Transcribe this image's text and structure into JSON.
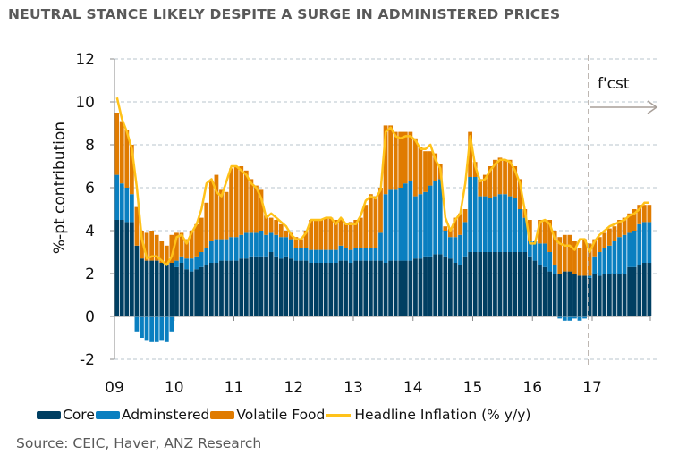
{
  "title": "NEUTRAL STANCE LIKELY DESPITE A SURGE IN ADMINISTERED PRICES",
  "source": "Source: CEIC, Haver, ANZ Research",
  "chart_data": {
    "type": "bar",
    "stacked": true,
    "ylabel": "%-pt contribution",
    "ylim": [
      -2,
      12
    ],
    "yticks": [
      "-2",
      "0",
      "2",
      "4",
      "6",
      "8",
      "10",
      "12"
    ],
    "xticks": [
      "09",
      "10",
      "11",
      "12",
      "13",
      "14",
      "15",
      "16",
      "17"
    ],
    "grid": "horizontal dashed",
    "forecast_label": "f'cst",
    "forecast_start": "17",
    "legend_position": "bottom",
    "colors": {
      "core": "#003f62",
      "administered": "#0a7fc0",
      "food": "#e07b00",
      "headline": "#ffc21a"
    },
    "period": "monthly, Jan 2009 - Dec 2017",
    "series": [
      {
        "name": "Core",
        "values": [
          4.5,
          4.5,
          4.4,
          4.4,
          3.3,
          2.7,
          2.6,
          2.6,
          2.6,
          2.5,
          2.4,
          2.5,
          2.3,
          2.5,
          2.2,
          2.1,
          2.2,
          2.3,
          2.4,
          2.5,
          2.5,
          2.6,
          2.6,
          2.6,
          2.6,
          2.7,
          2.7,
          2.8,
          2.8,
          2.8,
          2.8,
          3.0,
          2.8,
          2.7,
          2.8,
          2.7,
          2.6,
          2.6,
          2.6,
          2.5,
          2.5,
          2.5,
          2.5,
          2.5,
          2.5,
          2.6,
          2.6,
          2.5,
          2.6,
          2.6,
          2.6,
          2.6,
          2.6,
          2.6,
          2.5,
          2.6,
          2.6,
          2.6,
          2.6,
          2.6,
          2.7,
          2.7,
          2.8,
          2.8,
          2.9,
          2.9,
          2.8,
          2.7,
          2.5,
          2.4,
          2.8,
          3.0,
          3.0,
          3.0,
          3.0,
          3.0,
          3.0,
          3.0,
          3.0,
          3.0,
          3.0,
          3.0,
          3.0,
          2.8,
          2.6,
          2.4,
          2.3,
          2.1,
          2.0,
          2.0,
          2.1,
          2.1,
          2.0,
          1.9,
          1.9,
          1.8,
          2.0,
          1.9,
          2.0,
          2.0,
          2.0,
          2.0,
          2.0,
          2.3,
          2.3,
          2.4,
          2.5,
          2.5
        ]
      },
      {
        "name": "Adminstered",
        "values": [
          2.1,
          1.7,
          1.6,
          1.3,
          -0.7,
          -1.0,
          -1.1,
          -1.2,
          -1.2,
          -1.1,
          -1.2,
          -0.7,
          0.3,
          0.3,
          0.5,
          0.6,
          0.6,
          0.7,
          0.8,
          1.0,
          1.1,
          1.0,
          1.0,
          1.1,
          1.1,
          1.1,
          1.2,
          1.1,
          1.1,
          1.2,
          1.0,
          0.9,
          1.0,
          1.0,
          0.9,
          0.9,
          0.6,
          0.6,
          0.6,
          0.6,
          0.6,
          0.6,
          0.6,
          0.6,
          0.6,
          0.7,
          0.6,
          0.6,
          0.6,
          0.6,
          0.6,
          0.6,
          0.6,
          1.3,
          3.2,
          3.3,
          3.3,
          3.4,
          3.6,
          3.7,
          2.9,
          3.0,
          3.0,
          3.3,
          3.4,
          3.5,
          1.2,
          1.0,
          1.2,
          1.4,
          1.6,
          3.5,
          3.5,
          2.6,
          2.6,
          2.5,
          2.6,
          2.7,
          2.7,
          2.6,
          2.5,
          2.0,
          1.6,
          0.7,
          0.9,
          1.0,
          1.1,
          0.9,
          0.4,
          -0.1,
          -0.2,
          -0.2,
          -0.1,
          -0.2,
          -0.1,
          0.1,
          0.8,
          1.1,
          1.2,
          1.3,
          1.5,
          1.7,
          1.8,
          1.6,
          1.7,
          1.9,
          1.9,
          1.9
        ]
      },
      {
        "name": "Volatile Food",
        "values": [
          2.9,
          2.9,
          2.7,
          2.3,
          1.8,
          1.3,
          1.3,
          1.4,
          1.2,
          1.0,
          0.9,
          1.3,
          1.3,
          1.1,
          0.9,
          1.3,
          1.5,
          1.6,
          2.1,
          2.8,
          3.0,
          2.3,
          2.2,
          3.2,
          3.3,
          3.2,
          2.9,
          2.5,
          2.2,
          1.9,
          0.9,
          0.7,
          0.7,
          0.6,
          0.3,
          0.3,
          0.5,
          0.4,
          0.8,
          1.4,
          1.4,
          1.4,
          1.5,
          1.5,
          1.4,
          1.2,
          1.1,
          1.3,
          1.3,
          1.4,
          2.0,
          2.5,
          2.4,
          2.1,
          3.2,
          3.0,
          2.7,
          2.6,
          2.4,
          2.3,
          2.7,
          2.2,
          1.9,
          1.6,
          1.3,
          0.7,
          0.2,
          0.4,
          0.9,
          1.0,
          0.6,
          2.1,
          0.7,
          0.8,
          1.0,
          1.5,
          1.7,
          1.7,
          1.6,
          1.7,
          1.5,
          1.4,
          0.4,
          1.0,
          0.0,
          1.1,
          1.1,
          1.5,
          1.6,
          1.7,
          1.7,
          1.7,
          1.5,
          1.3,
          1.7,
          1.5,
          0.8,
          0.7,
          0.7,
          0.8,
          0.7,
          0.8,
          0.8,
          0.9,
          1.0,
          0.9,
          0.8,
          0.8
        ]
      },
      {
        "name": "Headline Inflation (% y/y)",
        "type": "line",
        "values": [
          10.2,
          9.2,
          8.6,
          7.8,
          6.0,
          3.6,
          2.7,
          2.8,
          2.8,
          2.6,
          2.4,
          2.8,
          3.7,
          3.8,
          3.4,
          3.9,
          4.3,
          5.0,
          6.2,
          6.4,
          5.8,
          5.6,
          6.3,
          7.0,
          7.0,
          6.8,
          6.6,
          6.2,
          6.0,
          5.5,
          4.6,
          4.8,
          4.6,
          4.4,
          4.2,
          3.8,
          3.6,
          3.6,
          3.9,
          4.5,
          4.5,
          4.5,
          4.6,
          4.6,
          4.3,
          4.6,
          4.3,
          4.3,
          4.3,
          4.7,
          5.4,
          5.6,
          5.5,
          5.9,
          8.6,
          8.8,
          8.4,
          8.3,
          8.4,
          8.4,
          8.2,
          7.8,
          7.8,
          8.0,
          7.3,
          6.9,
          4.6,
          4.0,
          4.5,
          4.8,
          6.2,
          8.4,
          7.0,
          6.3,
          6.4,
          6.8,
          7.1,
          7.3,
          7.3,
          7.2,
          6.8,
          6.2,
          4.9,
          3.4,
          3.4,
          4.4,
          4.5,
          4.3,
          3.6,
          3.4,
          3.3,
          3.3,
          3.1,
          3.6,
          3.6,
          3.0,
          3.5,
          3.8,
          4.0,
          4.2,
          4.3,
          4.4,
          4.5,
          4.7,
          4.8,
          5.0,
          5.3,
          5.3
        ]
      }
    ]
  }
}
